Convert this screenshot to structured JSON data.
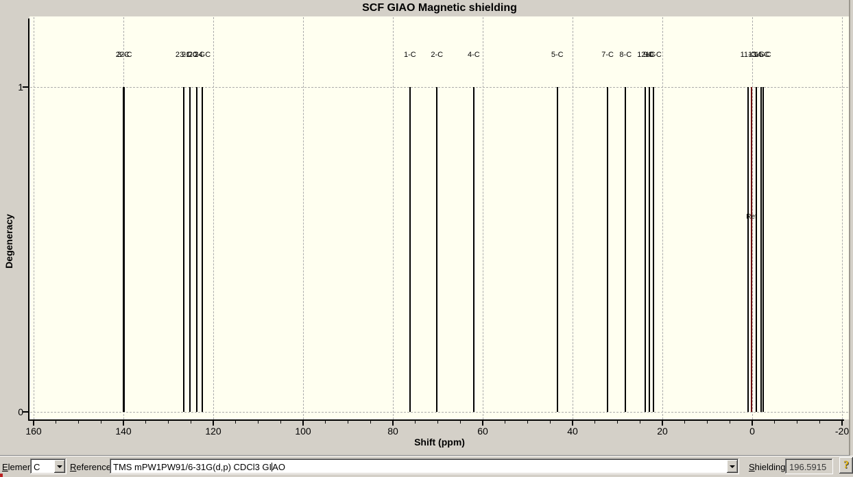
{
  "window": {
    "background": "#d4d0c8",
    "plot_background": "#fffff0"
  },
  "chart_data": {
    "type": "line",
    "subtype": "nmr-stick-spectrum",
    "title": "SCF GIAO Magnetic shielding",
    "xlabel": "Shift (ppm)",
    "ylabel": "Degeneracy",
    "x_range": [
      160,
      -20
    ],
    "x_ticks": [
      160,
      140,
      120,
      100,
      80,
      60,
      40,
      20,
      0,
      -20
    ],
    "x_minor_tick_step": 5,
    "y_range": [
      0,
      1
    ],
    "y_ticks": [
      0,
      1
    ],
    "grid": "dashed-major",
    "peak_color": "#000000",
    "peaks": [
      {
        "label": "3-C",
        "shift": 140.0,
        "degeneracy": 1
      },
      {
        "label": "22-C",
        "shift": 139.9,
        "degeneracy": 1
      },
      {
        "label": "23-C",
        "shift": 126.6,
        "degeneracy": 1
      },
      {
        "label": "21-C",
        "shift": 125.2,
        "degeneracy": 1
      },
      {
        "label": "20-C",
        "shift": 123.7,
        "degeneracy": 1
      },
      {
        "label": "24-C",
        "shift": 122.4,
        "degeneracy": 1
      },
      {
        "label": "1-C",
        "shift": 76.2,
        "degeneracy": 1
      },
      {
        "label": "2-C",
        "shift": 70.2,
        "degeneracy": 1
      },
      {
        "label": "4-C",
        "shift": 62.0,
        "degeneracy": 1
      },
      {
        "label": "5-C",
        "shift": 43.4,
        "degeneracy": 1
      },
      {
        "label": "7-C",
        "shift": 32.2,
        "degeneracy": 1
      },
      {
        "label": "8-C",
        "shift": 28.2,
        "degeneracy": 1
      },
      {
        "label": "12-C",
        "shift": 23.8,
        "degeneracy": 1
      },
      {
        "label": "9-C",
        "shift": 22.9,
        "degeneracy": 1
      },
      {
        "label": "10-C",
        "shift": 22.0,
        "degeneracy": 1
      },
      {
        "label": "11-C",
        "shift": 0.9,
        "degeneracy": 1
      },
      {
        "label": "13-C",
        "shift": -0.9,
        "degeneracy": 1
      },
      {
        "label": "14-C",
        "shift": -2.0,
        "degeneracy": 1
      },
      {
        "label": "15-C",
        "shift": -2.4,
        "degeneracy": 1
      }
    ],
    "reference": {
      "label": "Ref",
      "shift": 0.15,
      "color": "#6e0f0f"
    }
  },
  "toolbar": {
    "element_label": {
      "accel": "E",
      "rest": "lement:"
    },
    "element_value": "C",
    "reference_label": {
      "accel": "R",
      "rest": "eference:"
    },
    "reference_value": "TMS mPW1PW91/6-31G(d,p) CDCl3 GIAO",
    "reference_caret_index": 32,
    "shielding_label": {
      "accel": "S",
      "rest": "hielding:"
    },
    "shielding_value": "196.5915",
    "help_label": "?"
  }
}
